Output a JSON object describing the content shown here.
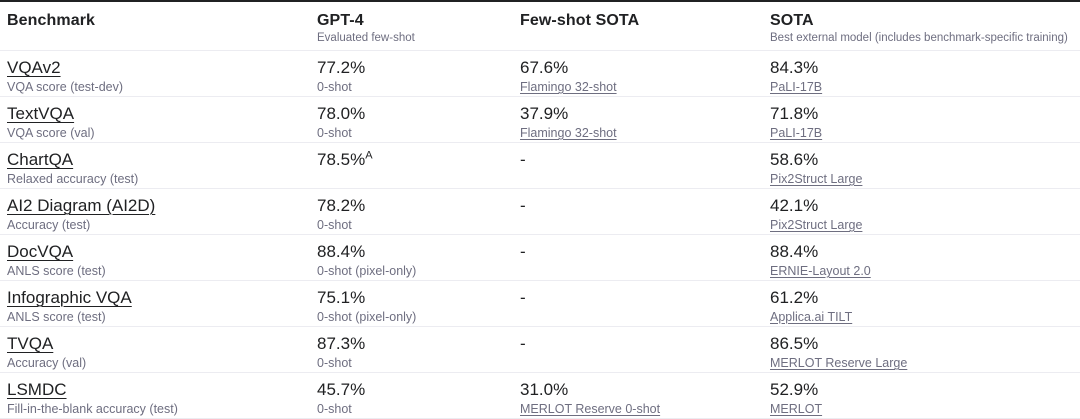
{
  "header": {
    "columns": [
      {
        "label": "Benchmark",
        "sub": ""
      },
      {
        "label": "GPT-4",
        "sub": "Evaluated few-shot"
      },
      {
        "label": "Few-shot SOTA",
        "sub": ""
      },
      {
        "label": "SOTA",
        "sub": "Best external model (includes benchmark-specific training)"
      }
    ]
  },
  "colors": {
    "text": "#202123",
    "muted_gray": "#6e6e80",
    "divider": "#ececf1",
    "top_rule": "#202123",
    "background": "#ffffff"
  },
  "rows": [
    {
      "benchmark": "VQAv2",
      "metric": "VQA score (test-dev)",
      "gpt4_value": "77.2%",
      "gpt4_sup": "",
      "gpt4_note": "0-shot",
      "fewshot_value": "67.6%",
      "fewshot_model": "Flamingo 32-shot",
      "sota_value": "84.3%",
      "sota_model": "PaLI-17B"
    },
    {
      "benchmark": "TextVQA",
      "metric": "VQA score (val)",
      "gpt4_value": "78.0%",
      "gpt4_sup": "",
      "gpt4_note": "0-shot",
      "fewshot_value": "37.9%",
      "fewshot_model": "Flamingo 32-shot",
      "sota_value": "71.8%",
      "sota_model": "PaLI-17B"
    },
    {
      "benchmark": "ChartQA",
      "metric": "Relaxed accuracy (test)",
      "gpt4_value": "78.5%",
      "gpt4_sup": "A",
      "gpt4_note": "",
      "fewshot_value": "-",
      "fewshot_model": "",
      "sota_value": "58.6%",
      "sota_model": "Pix2Struct Large"
    },
    {
      "benchmark": "AI2 Diagram (AI2D)",
      "metric": "Accuracy (test)",
      "gpt4_value": "78.2%",
      "gpt4_sup": "",
      "gpt4_note": "0-shot",
      "fewshot_value": "-",
      "fewshot_model": "",
      "sota_value": "42.1%",
      "sota_model": "Pix2Struct Large"
    },
    {
      "benchmark": "DocVQA",
      "metric": "ANLS score (test)",
      "gpt4_value": "88.4%",
      "gpt4_sup": "",
      "gpt4_note": "0-shot (pixel-only)",
      "fewshot_value": "-",
      "fewshot_model": "",
      "sota_value": "88.4%",
      "sota_model": "ERNIE-Layout 2.0"
    },
    {
      "benchmark": "Infographic VQA",
      "metric": "ANLS score (test)",
      "gpt4_value": "75.1%",
      "gpt4_sup": "",
      "gpt4_note": "0-shot (pixel-only)",
      "fewshot_value": "-",
      "fewshot_model": "",
      "sota_value": "61.2%",
      "sota_model": "Applica.ai TILT"
    },
    {
      "benchmark": "TVQA",
      "metric": "Accuracy (val)",
      "gpt4_value": "87.3%",
      "gpt4_sup": "",
      "gpt4_note": "0-shot",
      "fewshot_value": "-",
      "fewshot_model": "",
      "sota_value": "86.5%",
      "sota_model": "MERLOT Reserve Large"
    },
    {
      "benchmark": "LSMDC",
      "metric": "Fill-in-the-blank accuracy (test)",
      "gpt4_value": "45.7%",
      "gpt4_sup": "",
      "gpt4_note": "0-shot",
      "fewshot_value": "31.0%",
      "fewshot_model": "MERLOT Reserve 0-shot",
      "sota_value": "52.9%",
      "sota_model": "MERLOT"
    }
  ]
}
